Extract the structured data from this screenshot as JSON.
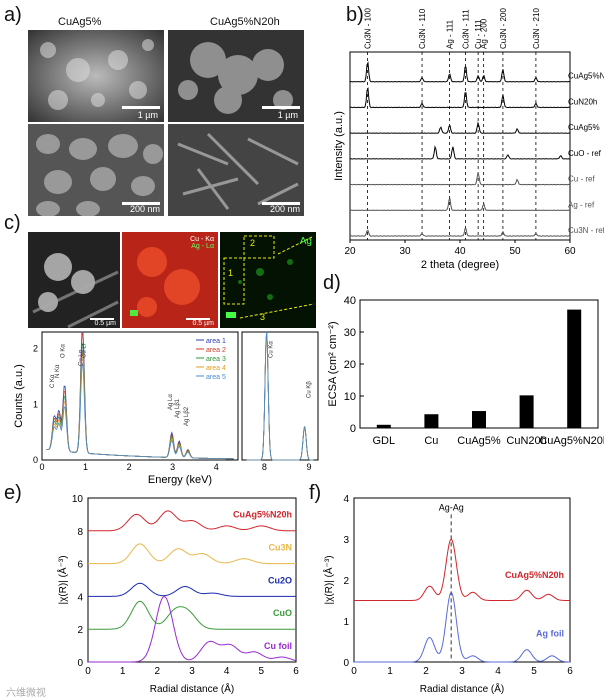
{
  "panels": {
    "a": "a)",
    "b": "b)",
    "c": "c)",
    "d": "d)",
    "e": "e)",
    "f": "f)"
  },
  "panel_a": {
    "col1_title": "CuAg5%",
    "col2_title": "CuAg5%N20h",
    "scale_top": "1 µm",
    "scale_bottom": "200 nm"
  },
  "panel_c": {
    "scale": "0.5 µm",
    "map_cu": "Cu - Kα",
    "map_ag": "Ag - Lα",
    "ag_label": "Ag",
    "area_labels": [
      "1",
      "2",
      "3"
    ]
  },
  "chart_data": [
    {
      "panel": "b",
      "type": "line",
      "xlabel": "2 theta (degree)",
      "ylabel": "Intensity (a.u.)",
      "xlim": [
        20,
        60
      ],
      "xticks": [
        20,
        30,
        40,
        50,
        60
      ],
      "ref_lines": [
        {
          "label": "Cu3N - 100",
          "x": 23.2
        },
        {
          "label": "Cu3N - 110",
          "x": 33.1
        },
        {
          "label": "Ag - 111",
          "x": 38.1
        },
        {
          "label": "Cu3N - 111",
          "x": 41.0
        },
        {
          "label": "Cu - 111",
          "x": 43.3
        },
        {
          "label": "Ag - 200",
          "x": 44.3
        },
        {
          "label": "Cu3N - 200",
          "x": 47.8
        },
        {
          "label": "Cu3N - 210",
          "x": 53.8
        }
      ],
      "series": [
        {
          "name": "CuAg5%N20h",
          "color": "#000000",
          "peaks": [
            [
              23.2,
              5
            ],
            [
              33.1,
              1
            ],
            [
              38.1,
              2
            ],
            [
              41.0,
              4
            ],
            [
              43.3,
              1.5
            ],
            [
              44.3,
              1.5
            ],
            [
              47.8,
              3
            ],
            [
              53.8,
              1
            ]
          ]
        },
        {
          "name": "CuN20h",
          "color": "#000000",
          "peaks": [
            [
              23.2,
              5
            ],
            [
              33.1,
              1
            ],
            [
              41.0,
              4
            ],
            [
              47.8,
              3
            ],
            [
              53.8,
              1
            ]
          ]
        },
        {
          "name": "CuAg5%",
          "color": "#000000",
          "peaks": [
            [
              36.5,
              1.5
            ],
            [
              38.1,
              2
            ],
            [
              43.3,
              2.5
            ],
            [
              50.4,
              1
            ]
          ]
        },
        {
          "name": "CuO - ref",
          "color": "#000000",
          "peaks": [
            [
              35.5,
              3
            ],
            [
              38.7,
              3
            ],
            [
              48.7,
              1
            ],
            [
              58.3,
              0.8
            ]
          ]
        },
        {
          "name": "Cu - ref",
          "color": "#555555",
          "peaks": [
            [
              43.3,
              3
            ],
            [
              50.4,
              1.2
            ]
          ]
        },
        {
          "name": "Ag - ref",
          "color": "#555555",
          "peaks": [
            [
              38.1,
              3
            ],
            [
              44.3,
              1.5
            ]
          ]
        },
        {
          "name": "Cu3N - ref",
          "color": "#555555",
          "peaks": [
            [
              23.2,
              1.5
            ],
            [
              33.1,
              0.6
            ],
            [
              41.0,
              2
            ],
            [
              47.8,
              1
            ],
            [
              53.8,
              0.6
            ]
          ]
        }
      ]
    },
    {
      "panel": "c",
      "type": "line",
      "xlabel": "Energy (keV)",
      "ylabel": "Counts (a.u.)",
      "xlim": [
        0,
        9
      ],
      "ylim": [
        0,
        2
      ],
      "yticks": [
        0,
        1,
        2
      ],
      "xticks": [
        "0",
        "1",
        "2",
        "3",
        "4",
        "8",
        "9"
      ],
      "annotations": [
        "C Kα",
        "N Kα",
        "O Kα",
        "Cu Lα",
        "Cu Lι",
        "Ag Lα",
        "Ag Lβ1",
        "Ag Lβ2",
        "Cu Kα",
        "Cu Kβ"
      ],
      "series": [
        {
          "name": "area 1",
          "color": "#2a3fb0"
        },
        {
          "name": "area 2",
          "color": "#d33b2a"
        },
        {
          "name": "area 3",
          "color": "#2a9a3a"
        },
        {
          "name": "area 4",
          "color": "#e0a020"
        },
        {
          "name": "area 5",
          "color": "#4a8ad0"
        }
      ]
    },
    {
      "panel": "d",
      "type": "bar",
      "categories": [
        "GDL",
        "Cu",
        "CuAg5%",
        "CuN20h",
        "CuAg5%N20h"
      ],
      "values": [
        1,
        4.3,
        5.3,
        10.2,
        37
      ],
      "ylabel": "ECSA (cm² cm⁻²)",
      "ylim": [
        0,
        40
      ],
      "yticks": [
        0,
        10,
        20,
        30,
        40
      ]
    },
    {
      "panel": "e",
      "type": "line",
      "xlabel": "Radial distance (Å)",
      "ylabel": "|χ(R)| (Å⁻³)",
      "xlim": [
        0,
        6
      ],
      "ylim": [
        0,
        10
      ],
      "xticks": [
        0,
        1,
        2,
        3,
        4,
        5,
        6
      ],
      "yticks": [
        0,
        2,
        4,
        6,
        8,
        10
      ],
      "series": [
        {
          "name": "CuAg5%N20h",
          "color": "#d0262c",
          "offset": 8
        },
        {
          "name": "Cu3N",
          "color": "#e8b84a",
          "offset": 6
        },
        {
          "name": "Cu2O",
          "color": "#1a2ab0",
          "offset": 4
        },
        {
          "name": "CuO",
          "color": "#3a9a3a",
          "offset": 2
        },
        {
          "name": "Cu foil",
          "color": "#9a2ad0",
          "offset": 0
        }
      ]
    },
    {
      "panel": "f",
      "type": "line",
      "xlabel": "Radial distance (Å)",
      "ylabel": "|χ(R)| (Å⁻³)",
      "xlim": [
        0,
        6
      ],
      "ylim": [
        0,
        4
      ],
      "xticks": [
        0,
        1,
        2,
        3,
        4,
        5,
        6
      ],
      "yticks": [
        0,
        1,
        2,
        3,
        4
      ],
      "annotation": "Ag-Ag",
      "series": [
        {
          "name": "CuAg5%N20h",
          "color": "#d0262c",
          "offset": 1.5
        },
        {
          "name": "Ag foil",
          "color": "#5a6ad8",
          "offset": 0
        }
      ]
    }
  ],
  "watermark": "六维微视"
}
